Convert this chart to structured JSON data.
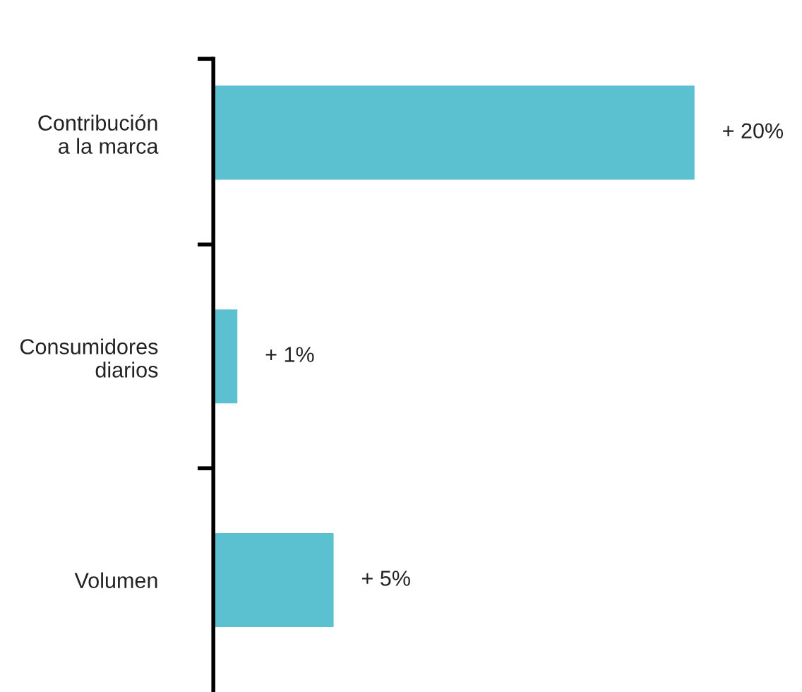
{
  "chart_data": {
    "type": "bar",
    "orientation": "horizontal",
    "categories": [
      "Contribución\na la marca",
      "Consumidores\ndiarios",
      "Volumen"
    ],
    "values": [
      20,
      1,
      5
    ],
    "color": "#5bc0cf",
    "value_labels": [
      "+ 20%",
      "+ 1%",
      "+ 5%"
    ],
    "grid": false,
    "legend": false
  }
}
